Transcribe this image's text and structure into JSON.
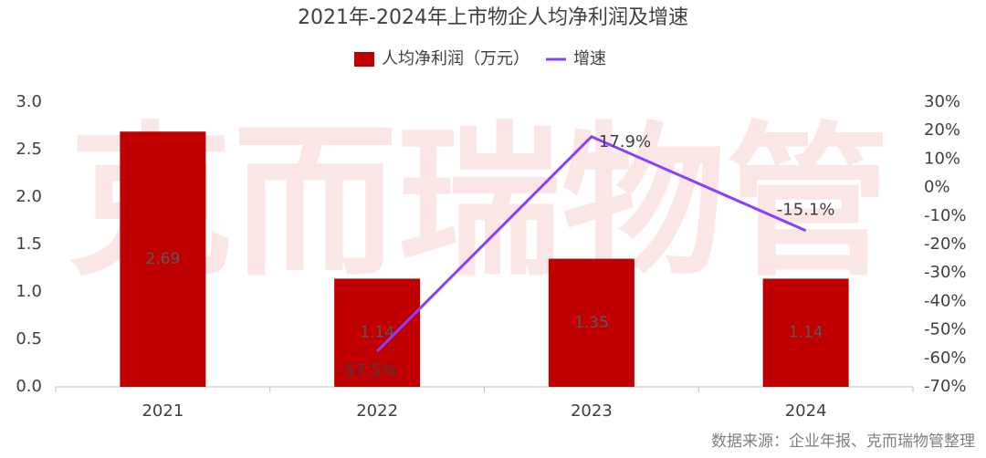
{
  "chart_data": {
    "type": "bar_line",
    "title": "2021年-2024年上市物企人均净利润及增速",
    "watermark": "克而瑞物管",
    "source": "数据来源：企业年报、克而瑞物管整理",
    "categories": [
      "2021",
      "2022",
      "2023",
      "2024"
    ],
    "series": [
      {
        "name": "人均净利润（万元）",
        "type": "bar",
        "color": "#c00000",
        "values": [
          2.69,
          1.14,
          1.35,
          1.14
        ]
      },
      {
        "name": "增速",
        "type": "line",
        "axis": "y2",
        "color": "#8a3ffc",
        "values": [
          null,
          -57.5,
          17.9,
          -15.1
        ],
        "value_labels": [
          null,
          "-57.5%",
          "17.9%",
          "-15.1%"
        ]
      }
    ],
    "ylim": [
      0,
      3
    ],
    "yticks": [
      {
        "value": 0,
        "label": "0.0"
      },
      0.5,
      {
        "value": 1,
        "label": "1.0"
      },
      1.5,
      {
        "value": 2,
        "label": "2.0"
      },
      2.5,
      {
        "value": 3,
        "label": "3.0"
      }
    ],
    "y2lim": [
      -70,
      30
    ],
    "y2ticks": [
      {
        "value": -70,
        "label": "-70%"
      },
      {
        "value": -60,
        "label": "-60%"
      },
      {
        "value": -50,
        "label": "-50%"
      },
      {
        "value": -40,
        "label": "-40%"
      },
      {
        "value": -30,
        "label": "-30%"
      },
      {
        "value": -20,
        "label": "-20%"
      },
      {
        "value": -10,
        "label": "-10%"
      },
      {
        "value": 0,
        "label": "0%"
      },
      {
        "value": 10,
        "label": "10%"
      },
      {
        "value": 20,
        "label": "20%"
      },
      {
        "value": 30,
        "label": "30%"
      }
    ],
    "legend": "top"
  }
}
